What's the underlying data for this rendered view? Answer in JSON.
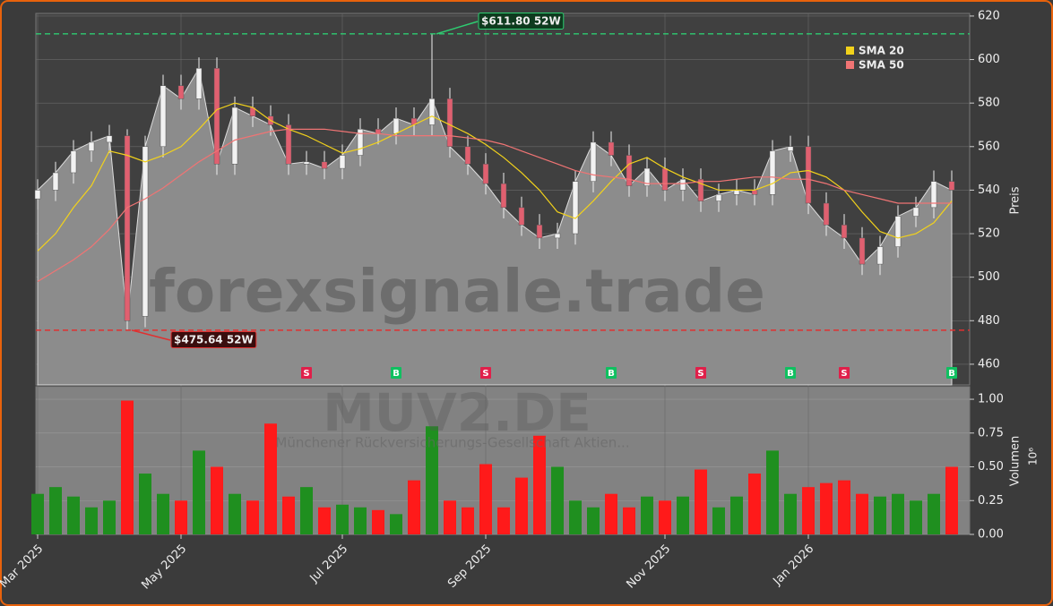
{
  "chart_data": {
    "type": "candlestick",
    "categories": [
      "Mar 2025",
      null,
      null,
      null,
      null,
      null,
      null,
      null,
      "May 2025",
      null,
      null,
      null,
      null,
      null,
      null,
      null,
      null,
      "Jul 2025",
      null,
      null,
      null,
      null,
      null,
      null,
      null,
      "Sep 2025",
      null,
      null,
      null,
      null,
      null,
      null,
      null,
      null,
      null,
      "Nov 2025",
      null,
      null,
      null,
      null,
      null,
      null,
      null,
      "Jan 2026",
      null,
      null,
      null,
      null,
      null,
      null,
      null,
      null
    ],
    "open": [
      536,
      540,
      548,
      558,
      562,
      565,
      482,
      560,
      588,
      582,
      596,
      552,
      578,
      574,
      570,
      552,
      553,
      550,
      556,
      568,
      566,
      573,
      570,
      582,
      560,
      552,
      543,
      532,
      524,
      518,
      520,
      544,
      562,
      556,
      542,
      550,
      540,
      545,
      535,
      538,
      540,
      538,
      558,
      560,
      534,
      524,
      518,
      506,
      514,
      528,
      532,
      544
    ],
    "high": [
      545,
      553,
      563,
      567,
      570,
      568,
      565,
      593,
      593,
      601,
      601,
      583,
      583,
      579,
      575,
      558,
      558,
      561,
      573,
      573,
      578,
      578,
      611.8,
      587,
      565,
      557,
      548,
      537,
      529,
      525,
      549,
      567,
      567,
      561,
      555,
      555,
      550,
      550,
      543,
      545,
      545,
      563,
      565,
      565,
      539,
      529,
      523,
      519,
      533,
      537,
      549,
      549
    ],
    "low": [
      531,
      535,
      543,
      553,
      557,
      475.64,
      477,
      555,
      577,
      577,
      547,
      547,
      569,
      565,
      547,
      547,
      545,
      545,
      551,
      561,
      561,
      565,
      565,
      555,
      547,
      538,
      527,
      519,
      513,
      513,
      515,
      539,
      551,
      537,
      537,
      535,
      535,
      530,
      530,
      533,
      533,
      533,
      553,
      529,
      519,
      513,
      501,
      501,
      509,
      523,
      527,
      535
    ],
    "close": [
      540,
      548,
      558,
      562,
      565,
      480,
      560,
      588,
      582,
      596,
      552,
      578,
      574,
      570,
      552,
      553,
      550,
      556,
      568,
      566,
      573,
      570,
      582,
      560,
      552,
      543,
      532,
      524,
      518,
      520,
      544,
      562,
      556,
      542,
      550,
      540,
      545,
      535,
      538,
      540,
      538,
      558,
      560,
      534,
      524,
      518,
      506,
      514,
      528,
      532,
      544,
      540
    ],
    "volume": [
      0.3,
      0.35,
      0.28,
      0.2,
      0.25,
      0.99,
      0.45,
      0.3,
      0.25,
      0.62,
      0.5,
      0.3,
      0.25,
      0.82,
      0.28,
      0.35,
      0.2,
      0.22,
      0.2,
      0.18,
      0.15,
      0.4,
      0.8,
      0.25,
      0.2,
      0.52,
      0.2,
      0.42,
      0.73,
      0.5,
      0.25,
      0.2,
      0.3,
      0.2,
      0.28,
      0.25,
      0.28,
      0.48,
      0.2,
      0.28,
      0.45,
      0.62,
      0.3,
      0.35,
      0.38,
      0.4,
      0.3,
      0.28,
      0.3,
      0.25,
      0.3,
      0.5
    ],
    "series": [
      {
        "name": "SMA 20",
        "color": "#f2d21b",
        "values": [
          512,
          520,
          532,
          542,
          558,
          556,
          553,
          556,
          560,
          568,
          577,
          580,
          578,
          572,
          568,
          565,
          561,
          557,
          559,
          562,
          566,
          570,
          574,
          570,
          566,
          561,
          555,
          548,
          540,
          530,
          527,
          535,
          544,
          552,
          555,
          550,
          546,
          543,
          540,
          540,
          540,
          543,
          548,
          549,
          546,
          540,
          530,
          521,
          518,
          520,
          525,
          535
        ]
      },
      {
        "name": "SMA 50",
        "color": "#f07474",
        "values": [
          498,
          503,
          508,
          514,
          522,
          532,
          536,
          541,
          547,
          553,
          558,
          563,
          565,
          567,
          568,
          568,
          568,
          567,
          566,
          566,
          565,
          565,
          565,
          565,
          564,
          563,
          561,
          558,
          555,
          552,
          549,
          547,
          546,
          545,
          543,
          543,
          543,
          544,
          544,
          545,
          546,
          546,
          545,
          545,
          543,
          540,
          538,
          536,
          534,
          534,
          534,
          534
        ]
      }
    ],
    "signals": [
      null,
      null,
      null,
      null,
      null,
      null,
      null,
      null,
      null,
      null,
      null,
      null,
      null,
      null,
      null,
      "S",
      null,
      null,
      null,
      null,
      "B",
      null,
      null,
      null,
      null,
      "S",
      null,
      null,
      null,
      null,
      null,
      null,
      "B",
      null,
      null,
      null,
      null,
      "S",
      null,
      null,
      null,
      null,
      "B",
      null,
      null,
      "S",
      null,
      null,
      null,
      null,
      null,
      "B"
    ],
    "high_52w": {
      "value": 611.8,
      "label": "$611.80 52W",
      "color": "#2ecc71"
    },
    "low_52w": {
      "value": 475.64,
      "label": "$475.64 52W",
      "color": "#e03030"
    },
    "up_color": "#1f8f1f",
    "down_color": "#ff1a1a",
    "ylim": [
      450.5,
      621.2
    ],
    "yticks": [
      460,
      480,
      500,
      520,
      540,
      560,
      580,
      600,
      620
    ],
    "y2lim": [
      0,
      1.093
    ],
    "y2ticks": [
      {
        "value": 0,
        "label": "0.00"
      },
      0.25,
      {
        "value": 0.5,
        "label": "0.50"
      },
      0.75,
      {
        "value": 1,
        "label": "1.00"
      }
    ],
    "y_label": "Preis",
    "y2_label": "Volumen",
    "y2_scale_label": "10⁶",
    "watermark": "forexsignale.trade",
    "symbol": "MUV2.DE",
    "company": "Münchener Rückversicherungs-Gesellschaft Aktien...",
    "grid": true
  }
}
